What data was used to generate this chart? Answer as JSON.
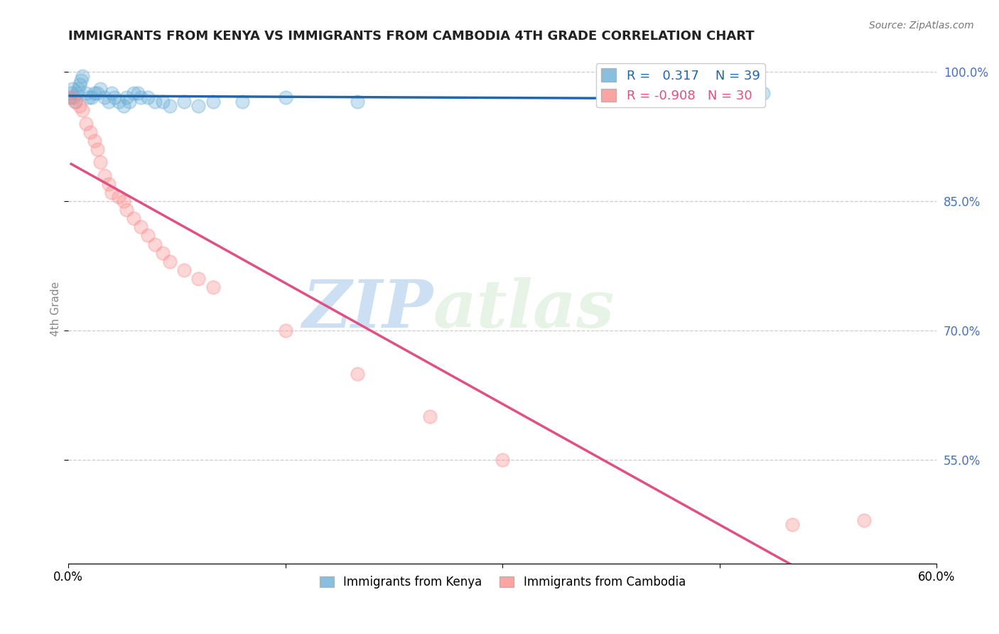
{
  "title": "IMMIGRANTS FROM KENYA VS IMMIGRANTS FROM CAMBODIA 4TH GRADE CORRELATION CHART",
  "source": "Source: ZipAtlas.com",
  "ylabel": "4th Grade",
  "xlim": [
    0.0,
    0.6
  ],
  "ylim": [
    0.43,
    1.02
  ],
  "yticks": [
    0.55,
    0.7,
    0.85,
    1.0
  ],
  "ytick_labels": [
    "55.0%",
    "70.0%",
    "85.0%",
    "100.0%"
  ],
  "xticks": [
    0.0,
    0.15,
    0.3,
    0.45,
    0.6
  ],
  "xtick_labels": [
    "0.0%",
    "",
    "",
    "",
    "60.0%"
  ],
  "kenya_R": 0.317,
  "kenya_N": 39,
  "cambodia_R": -0.908,
  "cambodia_N": 30,
  "kenya_color": "#6baed6",
  "cambodia_color": "#fc8d8d",
  "kenya_line_color": "#2166ac",
  "cambodia_line_color": "#e05080",
  "kenya_x": [
    0.001,
    0.002,
    0.003,
    0.004,
    0.005,
    0.006,
    0.007,
    0.008,
    0.009,
    0.01,
    0.012,
    0.014,
    0.016,
    0.018,
    0.02,
    0.022,
    0.025,
    0.028,
    0.03,
    0.032,
    0.035,
    0.038,
    0.04,
    0.042,
    0.045,
    0.048,
    0.05,
    0.055,
    0.06,
    0.065,
    0.07,
    0.08,
    0.09,
    0.1,
    0.12,
    0.15,
    0.2,
    0.45,
    0.48
  ],
  "kenya_y": [
    0.97,
    0.975,
    0.98,
    0.97,
    0.965,
    0.975,
    0.98,
    0.985,
    0.99,
    0.995,
    0.975,
    0.97,
    0.97,
    0.975,
    0.975,
    0.98,
    0.97,
    0.965,
    0.975,
    0.97,
    0.965,
    0.96,
    0.97,
    0.965,
    0.975,
    0.975,
    0.97,
    0.97,
    0.965,
    0.965,
    0.96,
    0.965,
    0.96,
    0.965,
    0.965,
    0.97,
    0.965,
    0.975,
    0.975
  ],
  "cambodia_x": [
    0.002,
    0.005,
    0.008,
    0.01,
    0.012,
    0.015,
    0.018,
    0.02,
    0.022,
    0.025,
    0.028,
    0.03,
    0.035,
    0.038,
    0.04,
    0.045,
    0.05,
    0.055,
    0.06,
    0.065,
    0.07,
    0.08,
    0.09,
    0.1,
    0.15,
    0.2,
    0.25,
    0.3,
    0.5,
    0.55
  ],
  "cambodia_y": [
    0.97,
    0.965,
    0.96,
    0.955,
    0.94,
    0.93,
    0.92,
    0.91,
    0.895,
    0.88,
    0.87,
    0.86,
    0.855,
    0.85,
    0.84,
    0.83,
    0.82,
    0.81,
    0.8,
    0.79,
    0.78,
    0.77,
    0.76,
    0.75,
    0.7,
    0.65,
    0.6,
    0.55,
    0.475,
    0.48
  ],
  "watermark_zip": "ZIP",
  "watermark_atlas": "atlas",
  "legend_items": [
    "Immigrants from Kenya",
    "Immigrants from Cambodia"
  ],
  "background_color": "#ffffff",
  "grid_color": "#cccccc",
  "title_color": "#222222",
  "axis_label_color": "#888888",
  "right_axis_color": "#4472c4"
}
